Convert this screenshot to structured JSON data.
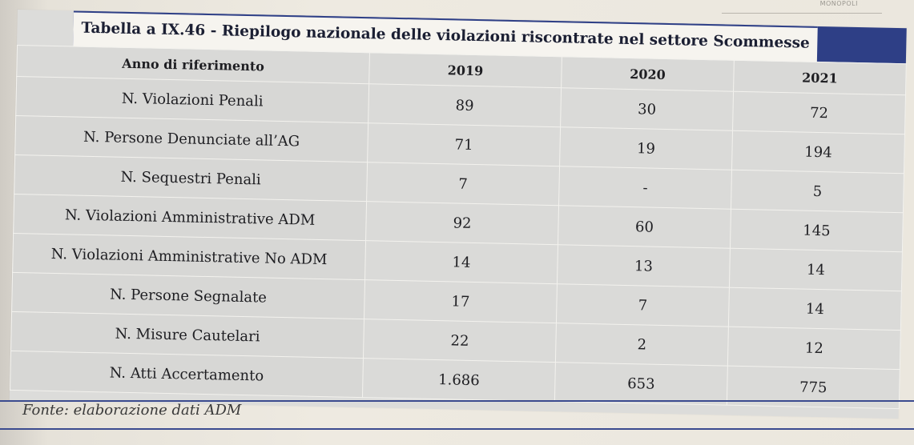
{
  "header_tag": "MONOPOLI",
  "table": {
    "title": "Tabella a IX.46 - Riepilogo nazionale delle violazioni riscontrate nel settore Scommesse",
    "columns": [
      "Anno di riferimento",
      "2019",
      "2020",
      "2021"
    ],
    "rows": [
      {
        "label": "N. Violazioni Penali",
        "values": [
          "89",
          "30",
          "72"
        ]
      },
      {
        "label": "N. Persone Denunciate all’AG",
        "values": [
          "71",
          "19",
          "194"
        ]
      },
      {
        "label": "N. Sequestri Penali",
        "values": [
          "7",
          "-",
          "5"
        ]
      },
      {
        "label": "N. Violazioni Amministrative ADM",
        "values": [
          "92",
          "60",
          "145"
        ]
      },
      {
        "label": "N. Violazioni Amministrative No ADM",
        "values": [
          "14",
          "13",
          "14"
        ]
      },
      {
        "label": "N. Persone Segnalate",
        "values": [
          "17",
          "7",
          "14"
        ]
      },
      {
        "label": "N. Misure Cautelari",
        "values": [
          "22",
          "2",
          "12"
        ]
      },
      {
        "label": "N. Atti Accertamento",
        "values": [
          "1.686",
          "653",
          "775"
        ]
      }
    ]
  },
  "footer": {
    "source": "Fonte: elaborazione dati ADM"
  }
}
